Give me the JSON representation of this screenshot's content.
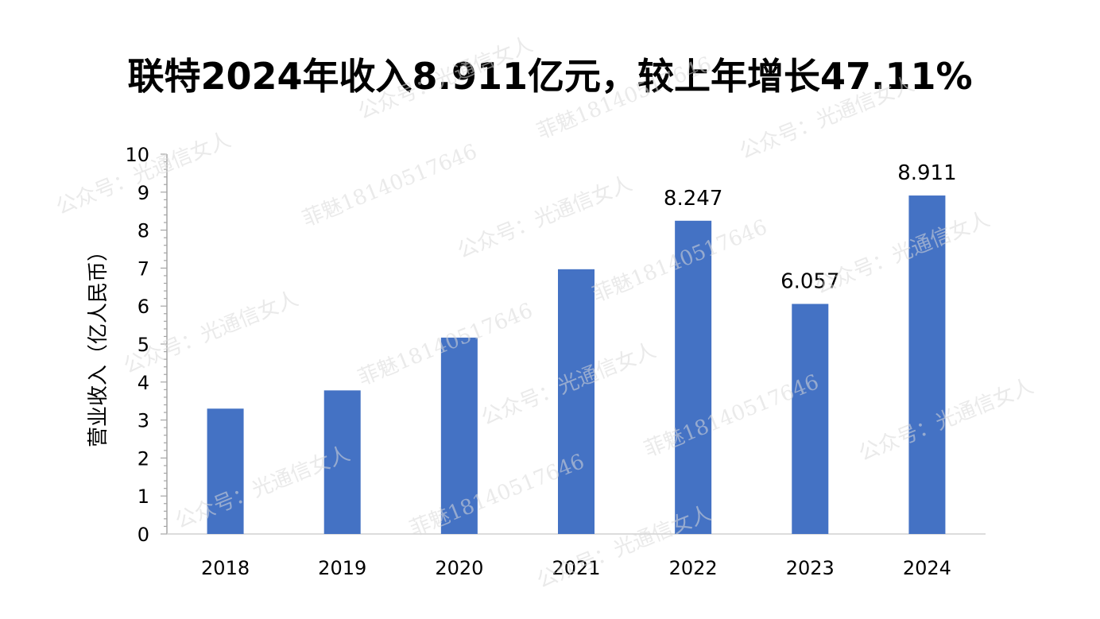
{
  "chart_data": {
    "type": "bar",
    "title": "联特2024年收入8.911亿元，较上年增长47.11%",
    "xlabel": "",
    "ylabel": "营业收入（亿人民币）",
    "categories": [
      "2018",
      "2019",
      "2020",
      "2021",
      "2022",
      "2023",
      "2024"
    ],
    "series": [
      {
        "values": [
          3.3,
          3.78,
          5.17,
          6.97,
          8.247,
          6.057,
          8.911
        ],
        "data_labels": [
          "",
          "",
          "",
          "",
          "8.247",
          "6.057",
          "8.911"
        ],
        "color": "#4472C4"
      }
    ],
    "ylim": [
      0,
      10
    ],
    "yticks": [
      "0",
      "1",
      "2",
      "3",
      "4",
      "5",
      "6",
      "7",
      "8",
      "9",
      "10"
    ],
    "grid": false,
    "legend": "none"
  },
  "watermarks": [
    "公众号：光通信女人",
    "菲魅18140517646"
  ]
}
